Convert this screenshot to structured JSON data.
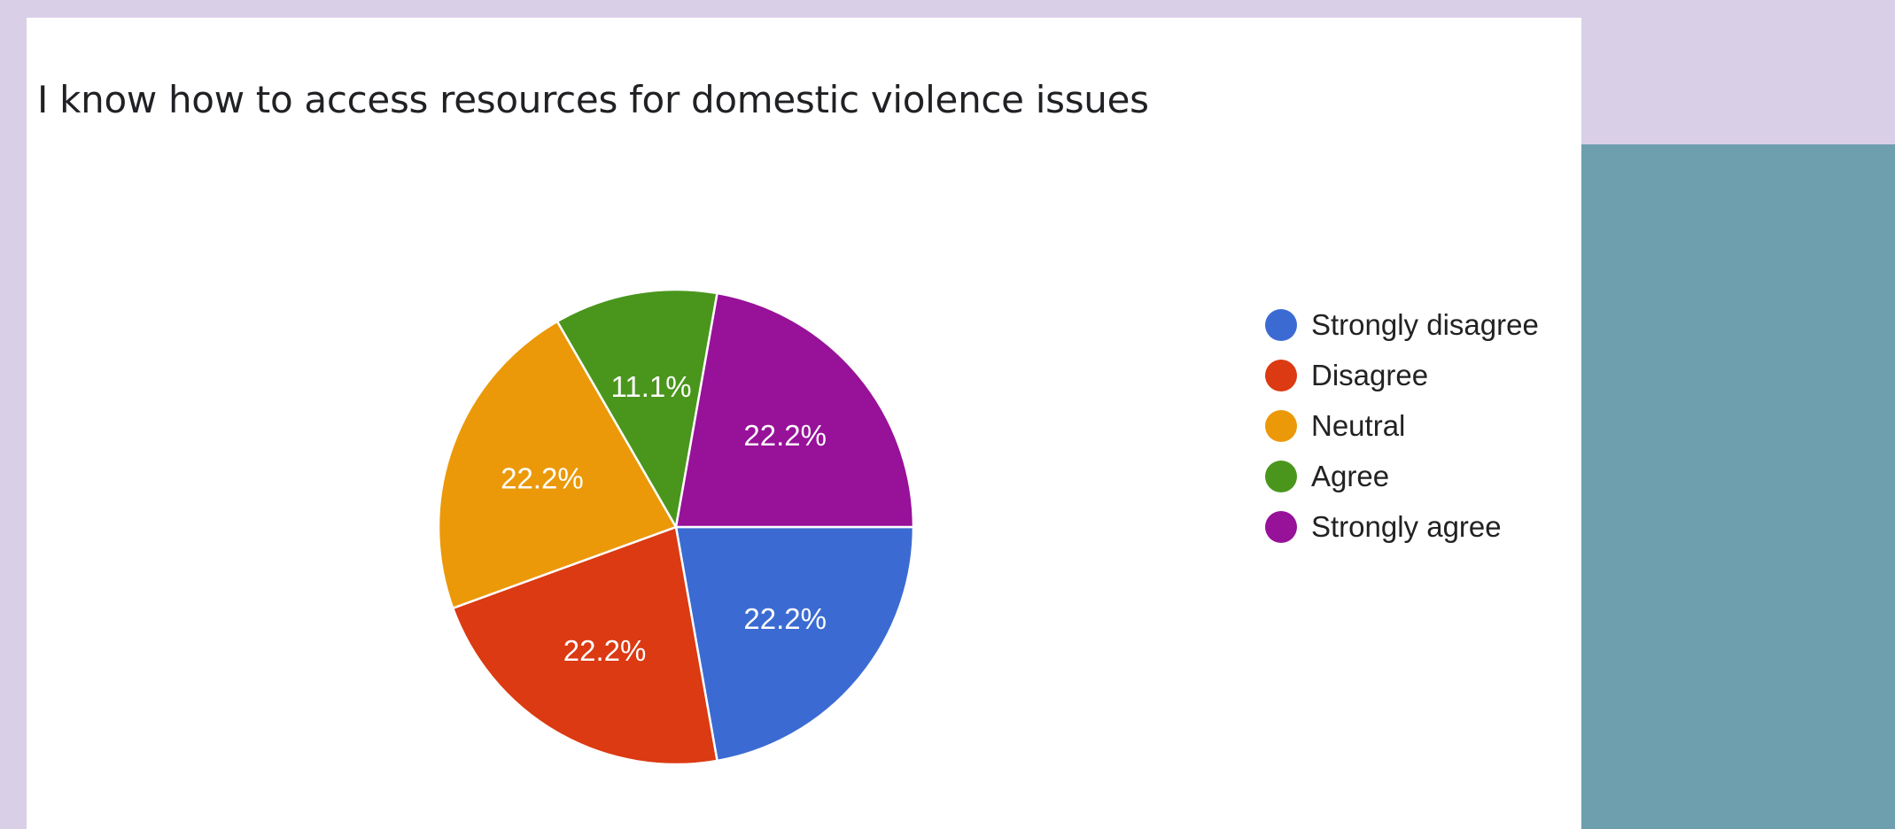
{
  "chart_data": {
    "type": "pie",
    "title": "I know how to access resources for domestic violence issues",
    "slices": [
      {
        "name": "Strongly disagree",
        "value": 22.2,
        "label": "22.2%",
        "color": "#3b6bd2"
      },
      {
        "name": "Disagree",
        "value": 22.2,
        "label": "22.2%",
        "color": "#db3a12"
      },
      {
        "name": "Neutral",
        "value": 22.2,
        "label": "22.2%",
        "color": "#eb9909"
      },
      {
        "name": "Agree",
        "value": 11.1,
        "label": "11.1%",
        "color": "#4a961c"
      },
      {
        "name": "Strongly agree",
        "value": 22.2,
        "label": "22.2%",
        "color": "#971199"
      }
    ],
    "legend_position": "right",
    "start_angle_deg": 0,
    "direction": "clockwise"
  },
  "colors": {
    "page_background": "#d9d0e8",
    "side_panel": "#6e9fae",
    "card_background": "#ffffff"
  }
}
